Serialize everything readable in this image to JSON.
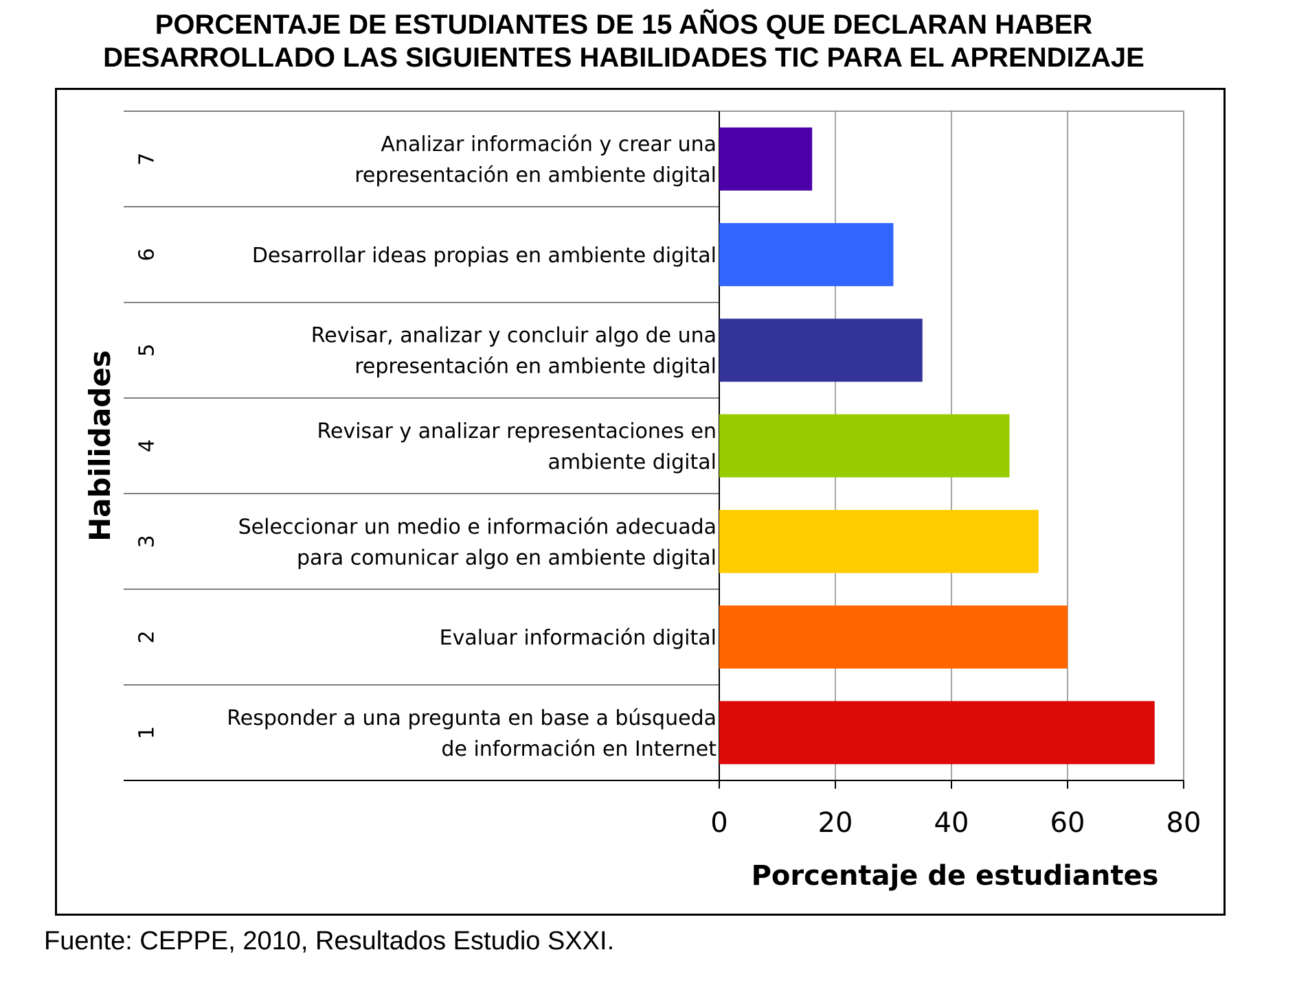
{
  "title_line1": "PORCENTAJE DE ESTUDIANTES DE 15 AÑOS QUE DECLARAN HABER",
  "title_line2": "DESARROLLADO LAS SIGUIENTES HABILIDADES TIC PARA EL APRENDIZAJE",
  "source": "Fuente: CEPPE, 2010, Resultados Estudio SXXI.",
  "chart_data": {
    "type": "bar",
    "orientation": "horizontal",
    "ylabel": "Habilidades",
    "xlabel": "Porcentaje de estudiantes",
    "xlim": [
      0,
      80
    ],
    "xticks": [
      0,
      20,
      40,
      60,
      80
    ],
    "grid": "vertical",
    "categories": [
      {
        "number": "1",
        "label": [
          "Responder a una pregunta en base a búsqueda",
          "de información en Internet"
        ],
        "value": 75,
        "color": "#dd0a0a"
      },
      {
        "number": "2",
        "label": [
          "Evaluar información digital"
        ],
        "value": 60,
        "color": "#ff6600"
      },
      {
        "number": "3",
        "label": [
          "Seleccionar un medio e información adecuada",
          "para comunicar algo en ambiente digital"
        ],
        "value": 55,
        "color": "#ffcc00"
      },
      {
        "number": "4",
        "label": [
          "Revisar y analizar representaciones en",
          "ambiente digital"
        ],
        "value": 50,
        "color": "#99cc00"
      },
      {
        "number": "5",
        "label": [
          "Revisar, analizar y concluir algo de una",
          "representación en ambiente digital"
        ],
        "value": 35,
        "color": "#333399"
      },
      {
        "number": "6",
        "label": [
          "Desarrollar ideas propias en ambiente digital"
        ],
        "value": 30,
        "color": "#3366ff"
      },
      {
        "number": "7",
        "label": [
          "Analizar información y crear una",
          "representación en ambiente digital"
        ],
        "value": 16,
        "color": "#4b00a8"
      }
    ]
  }
}
